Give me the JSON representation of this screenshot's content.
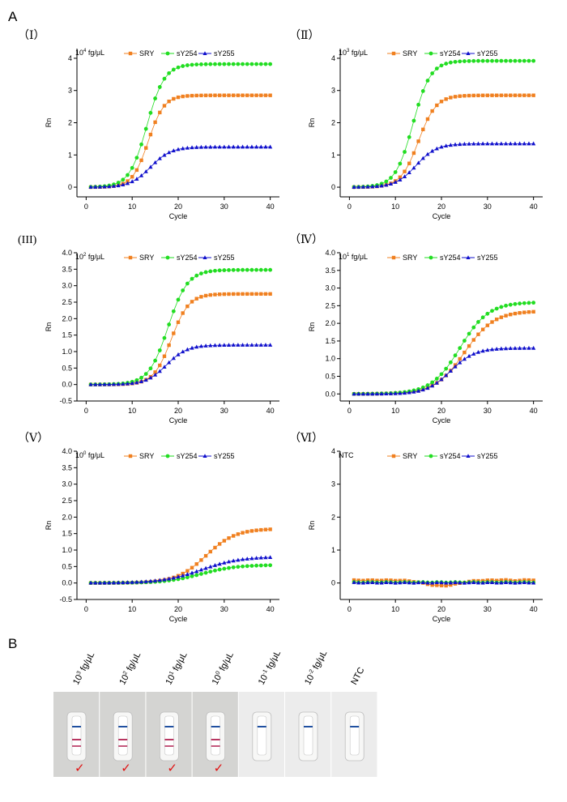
{
  "figure_labels": {
    "A": "A",
    "B": "B"
  },
  "colors": {
    "SRY": "#F08020",
    "sY254": "#22DD22",
    "sY255": "#1010CC",
    "control_line": "#2050A0",
    "test_line": "#B02050",
    "check": "#E01010"
  },
  "chart_data": [
    {
      "type": "line",
      "panel_label": "（Ⅰ）",
      "title": "10^4 fg/μL",
      "title_parts": {
        "base": "10",
        "exp": "4",
        "unit": " fg/μL"
      },
      "xlabel": "Cycle",
      "ylabel": "Rn",
      "xlim": [
        -2,
        42
      ],
      "xticks": [
        0,
        10,
        20,
        30,
        40
      ],
      "ylim": [
        -0.3,
        4.3
      ],
      "yticks": [
        0,
        1,
        2,
        3,
        4
      ],
      "ytick_labels": [
        "0",
        "1",
        "2",
        "3",
        "4"
      ],
      "legend": [
        "SRY",
        "sY254",
        "sY255"
      ],
      "series": [
        {
          "name": "SRY",
          "marker": "square",
          "baseline": 0,
          "plateau": 2.85,
          "midpoint": 13.5,
          "slope": 1.7
        },
        {
          "name": "sY254",
          "marker": "circle",
          "baseline": 0,
          "plateau": 3.82,
          "midpoint": 13.2,
          "slope": 1.9
        },
        {
          "name": "sY255",
          "marker": "triangle",
          "baseline": 0,
          "plateau": 1.25,
          "midpoint": 14,
          "slope": 2.2
        }
      ]
    },
    {
      "type": "line",
      "panel_label": "（Ⅱ）",
      "title": "10^3 fg/μL",
      "title_parts": {
        "base": "10",
        "exp": "3",
        "unit": " fg/μL"
      },
      "xlabel": "Cycle",
      "ylabel": "Rn",
      "xlim": [
        -2,
        42
      ],
      "xticks": [
        0,
        10,
        20,
        30,
        40
      ],
      "ylim": [
        -0.3,
        4.3
      ],
      "yticks": [
        0,
        1,
        2,
        3,
        4
      ],
      "ytick_labels": [
        "0",
        "1",
        "2",
        "3",
        "4"
      ],
      "legend": [
        "SRY",
        "sY254",
        "sY255"
      ],
      "series": [
        {
          "name": "SRY",
          "marker": "square",
          "baseline": 0,
          "plateau": 2.85,
          "midpoint": 15,
          "slope": 1.9
        },
        {
          "name": "sY254",
          "marker": "circle",
          "baseline": 0,
          "plateau": 3.92,
          "midpoint": 13.8,
          "slope": 1.9
        },
        {
          "name": "sY255",
          "marker": "triangle",
          "baseline": 0,
          "plateau": 1.35,
          "midpoint": 14.5,
          "slope": 2.2
        }
      ]
    },
    {
      "type": "line",
      "panel_label": "(III)",
      "title": "10^2 fg/μL",
      "title_parts": {
        "base": "10",
        "exp": "2",
        "unit": " fg/μL"
      },
      "xlabel": "Cycle",
      "ylabel": "Rn",
      "xlim": [
        -2,
        42
      ],
      "xticks": [
        0,
        10,
        20,
        30,
        40
      ],
      "ylim": [
        -0.5,
        4.0
      ],
      "yticks": [
        -0.5,
        0,
        0.5,
        1,
        1.5,
        2,
        2.5,
        3,
        3.5,
        4
      ],
      "ytick_labels": [
        "-0.5",
        "0.0",
        "0.5",
        "1.0",
        "1.5",
        "2.0",
        "2.5",
        "3.0",
        "3.5",
        "4.0"
      ],
      "legend": [
        "SRY",
        "sY254",
        "sY255"
      ],
      "series": [
        {
          "name": "SRY",
          "marker": "square",
          "baseline": 0,
          "plateau": 2.75,
          "midpoint": 18.5,
          "slope": 1.9
        },
        {
          "name": "sY254",
          "marker": "circle",
          "baseline": 0,
          "plateau": 3.48,
          "midpoint": 17.8,
          "slope": 2.1
        },
        {
          "name": "sY255",
          "marker": "triangle",
          "baseline": 0,
          "plateau": 1.2,
          "midpoint": 17.5,
          "slope": 2.2
        }
      ]
    },
    {
      "type": "line",
      "panel_label": "（Ⅳ）",
      "title": "10^1 fg/μL",
      "title_parts": {
        "base": "10",
        "exp": "1",
        "unit": " fg/μL"
      },
      "xlabel": "Cycle",
      "ylabel": "Rn",
      "xlim": [
        -2,
        42
      ],
      "xticks": [
        0,
        10,
        20,
        30,
        40
      ],
      "ylim": [
        -0.2,
        4.0
      ],
      "yticks": [
        0,
        0.5,
        1,
        1.5,
        2,
        2.5,
        3,
        3.5,
        4
      ],
      "ytick_labels": [
        "0.0",
        "0.5",
        "1.0",
        "1.5",
        "2.0",
        "2.5",
        "3.0",
        "3.5",
        "4.0"
      ],
      "legend": [
        "SRY",
        "sY254",
        "sY255"
      ],
      "series": [
        {
          "name": "SRY",
          "marker": "square",
          "baseline": 0,
          "plateau": 2.35,
          "midpoint": 25,
          "slope": 3.2
        },
        {
          "name": "sY254",
          "marker": "circle",
          "baseline": 0,
          "plateau": 2.6,
          "midpoint": 24,
          "slope": 3.1
        },
        {
          "name": "sY255",
          "marker": "triangle",
          "baseline": 0,
          "plateau": 1.3,
          "midpoint": 22,
          "slope": 2.6
        }
      ]
    },
    {
      "type": "line",
      "panel_label": "（Ⅴ）",
      "title": "10^0 fg/μL",
      "title_parts": {
        "base": "10",
        "exp": "0",
        "unit": " fg/μL"
      },
      "xlabel": "Cycle",
      "ylabel": "Rn",
      "xlim": [
        -2,
        42
      ],
      "xticks": [
        0,
        10,
        20,
        30,
        40
      ],
      "ylim": [
        -0.5,
        4.0
      ],
      "yticks": [
        -0.5,
        0,
        0.5,
        1,
        1.5,
        2,
        2.5,
        3,
        3.5,
        4
      ],
      "ytick_labels": [
        "-0.5",
        "0.0",
        "0.5",
        "1.0",
        "1.5",
        "2.0",
        "2.5",
        "3.0",
        "3.5",
        "4.0"
      ],
      "legend": [
        "SRY",
        "sY254",
        "sY255"
      ],
      "series": [
        {
          "name": "SRY",
          "marker": "square",
          "baseline": 0,
          "plateau": 1.65,
          "midpoint": 26,
          "slope": 3.2
        },
        {
          "name": "sY254",
          "marker": "circle",
          "baseline": 0,
          "plateau": 0.55,
          "midpoint": 25,
          "slope": 3.8
        },
        {
          "name": "sY255",
          "marker": "triangle",
          "baseline": 0,
          "plateau": 0.8,
          "midpoint": 25,
          "slope": 4.2
        }
      ]
    },
    {
      "type": "line",
      "panel_label": "（Ⅵ）",
      "title": "NTC",
      "title_parts": null,
      "xlabel": "Cycle",
      "ylabel": "Rn",
      "xlim": [
        -2,
        42
      ],
      "xticks": [
        0,
        10,
        20,
        30,
        40
      ],
      "ylim": [
        -0.5,
        4.0
      ],
      "yticks": [
        0,
        1,
        2,
        3,
        4
      ],
      "ytick_labels": [
        "0",
        "1",
        "2",
        "3",
        "4"
      ],
      "legend": [
        "SRY",
        "sY254",
        "sY255"
      ],
      "series": [
        {
          "name": "SRY",
          "marker": "square",
          "flat": true,
          "values_profile": "dip",
          "level": 0.08,
          "dip": -0.08
        },
        {
          "name": "sY254",
          "marker": "circle",
          "flat": true,
          "level": 0.02
        },
        {
          "name": "sY255",
          "marker": "triangle",
          "flat": true,
          "level": 0.01
        }
      ]
    }
  ],
  "strips": {
    "labels": [
      {
        "base": "10",
        "exp": "3",
        "unit": " fg/μL"
      },
      {
        "base": "10",
        "exp": "2",
        "unit": " fg/μL"
      },
      {
        "base": "10",
        "exp": "1",
        "unit": " fg/μL"
      },
      {
        "base": "10",
        "exp": "0",
        "unit": " fg/μL"
      },
      {
        "base": "10",
        "exp": "-1",
        "unit": " fg/μL"
      },
      {
        "base": "10",
        "exp": "-2",
        "unit": " fg/μL"
      },
      {
        "base": "NTC",
        "exp": "",
        "unit": ""
      }
    ],
    "positive": [
      true,
      true,
      true,
      true,
      false,
      false,
      false
    ],
    "test_line_count": [
      2,
      2,
      2,
      2,
      0,
      0,
      0
    ],
    "check_mark": "✓"
  }
}
